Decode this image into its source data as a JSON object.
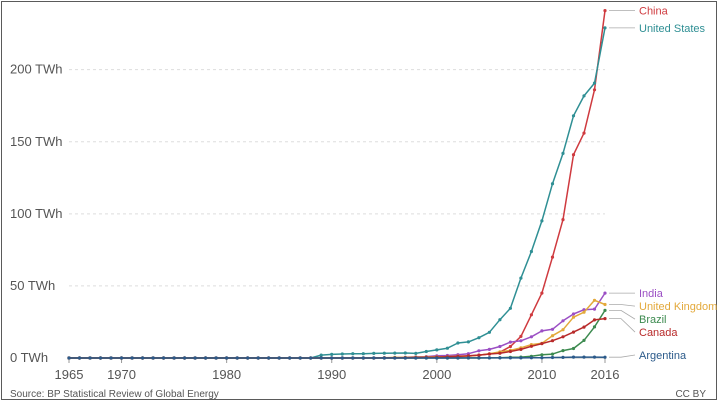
{
  "footer": {
    "source": "Source: BP Statistical Review of Global Energy",
    "license": "CC BY"
  },
  "chart_data": {
    "type": "line",
    "title": "",
    "xlabel": "",
    "ylabel": "",
    "xlim": [
      1965,
      2016
    ],
    "ylim": [
      0,
      240
    ],
    "x_ticks": [
      {
        "value": 1965,
        "label": "1965"
      },
      {
        "value": 1970,
        "label": "1970"
      },
      {
        "value": 1980,
        "label": "1980"
      },
      {
        "value": 1990,
        "label": "1990"
      },
      {
        "value": 2000,
        "label": "2000"
      },
      {
        "value": 2010,
        "label": "2010"
      },
      {
        "value": 2016,
        "label": "2016"
      }
    ],
    "y_ticks": [
      {
        "value": 0,
        "label": "0 TWh"
      },
      {
        "value": 50,
        "label": "50 TWh"
      },
      {
        "value": 100,
        "label": "100 TWh"
      },
      {
        "value": 150,
        "label": "150 TWh"
      },
      {
        "value": 200,
        "label": "200 TWh"
      }
    ],
    "grid": "horizontal-dashed",
    "legend": "right-end-labels",
    "x_start": 1965,
    "series": [
      {
        "name": "China",
        "color": "#cf3a3f",
        "values": [
          0,
          0,
          0,
          0,
          0,
          0,
          0,
          0,
          0,
          0,
          0,
          0,
          0,
          0,
          0,
          0,
          0,
          0,
          0,
          0,
          0,
          0,
          0,
          0,
          0,
          0,
          0,
          0,
          0,
          0,
          0,
          0,
          0,
          0,
          0.2,
          0.3,
          0.5,
          0.8,
          1.3,
          2.0,
          2.8,
          4.0,
          8.0,
          15.0,
          30.0,
          45.0,
          70.0,
          96.0,
          141.0,
          156.0,
          186.0,
          241.0
        ]
      },
      {
        "name": "United States",
        "color": "#2f8f94",
        "values": [
          0,
          0,
          0,
          0,
          0,
          0,
          0,
          0,
          0,
          0,
          0,
          0,
          0,
          0,
          0,
          0,
          0,
          0,
          0,
          0,
          0,
          0,
          0,
          0,
          2.0,
          2.5,
          2.8,
          3.0,
          3.0,
          3.2,
          3.3,
          3.4,
          3.5,
          3.2,
          4.5,
          5.6,
          6.8,
          10.4,
          11.2,
          14.1,
          17.8,
          26.6,
          34.5,
          55.4,
          73.9,
          95.1,
          120.9,
          141.9,
          168.0,
          181.8,
          190.7,
          229.0
        ]
      },
      {
        "name": "India",
        "color": "#9b4fc4",
        "values": [
          0,
          0,
          0,
          0,
          0,
          0,
          0,
          0,
          0,
          0,
          0,
          0,
          0,
          0,
          0,
          0,
          0,
          0,
          0,
          0,
          0,
          0,
          0,
          0,
          0,
          0,
          0,
          0,
          0,
          0,
          0.1,
          0.2,
          0.5,
          0.8,
          1.0,
          1.5,
          1.7,
          2.3,
          3.0,
          5.0,
          6.0,
          8.0,
          11.0,
          11.9,
          14.7,
          18.8,
          19.9,
          25.8,
          30.5,
          33.5,
          33.9,
          45.0
        ]
      },
      {
        "name": "United Kingdom",
        "color": "#e3a93b",
        "values": [
          0,
          0,
          0,
          0,
          0,
          0,
          0,
          0,
          0,
          0,
          0,
          0,
          0,
          0,
          0,
          0,
          0,
          0,
          0,
          0,
          0,
          0,
          0,
          0,
          0,
          0,
          0,
          0,
          0,
          0,
          0.2,
          0.4,
          0.4,
          0.6,
          0.7,
          0.9,
          1.0,
          1.3,
          1.3,
          1.9,
          2.9,
          4.2,
          5.3,
          7.1,
          9.3,
          10.2,
          15.5,
          19.6,
          28.3,
          31.8,
          40.0,
          37.1
        ]
      },
      {
        "name": "Brazil",
        "color": "#3c8a4f",
        "values": [
          0,
          0,
          0,
          0,
          0,
          0,
          0,
          0,
          0,
          0,
          0,
          0,
          0,
          0,
          0,
          0,
          0,
          0,
          0,
          0,
          0,
          0,
          0,
          0,
          0,
          0,
          0,
          0,
          0,
          0,
          0,
          0,
          0,
          0,
          0,
          0,
          0,
          0,
          0,
          0,
          0.1,
          0.2,
          0.5,
          0.6,
          1.2,
          2.2,
          2.7,
          5.1,
          6.6,
          12.2,
          21.6,
          33.0
        ]
      },
      {
        "name": "Canada",
        "color": "#b82a2a",
        "values": [
          0,
          0,
          0,
          0,
          0,
          0,
          0,
          0,
          0,
          0,
          0,
          0,
          0,
          0,
          0,
          0,
          0,
          0,
          0,
          0,
          0,
          0,
          0,
          0,
          0,
          0,
          0,
          0,
          0,
          0,
          0.1,
          0.1,
          0.2,
          0.3,
          0.4,
          0.6,
          0.8,
          1.1,
          1.5,
          2.0,
          2.8,
          3.3,
          4.5,
          6.0,
          8.1,
          10.0,
          12.0,
          14.7,
          18.0,
          21.4,
          26.4,
          27.3
        ]
      },
      {
        "name": "Argentina",
        "color": "#2b5a8a",
        "values": [
          0,
          0,
          0,
          0,
          0,
          0,
          0,
          0,
          0,
          0,
          0,
          0,
          0,
          0,
          0,
          0,
          0,
          0,
          0,
          0,
          0,
          0,
          0,
          0,
          0,
          0,
          0,
          0,
          0,
          0,
          0,
          0,
          0,
          0,
          0,
          0.01,
          0.02,
          0.03,
          0.05,
          0.06,
          0.07,
          0.07,
          0.08,
          0.1,
          0.13,
          0.18,
          0.34,
          0.45,
          0.61,
          0.61,
          0.59,
          0.55
        ]
      }
    ]
  }
}
